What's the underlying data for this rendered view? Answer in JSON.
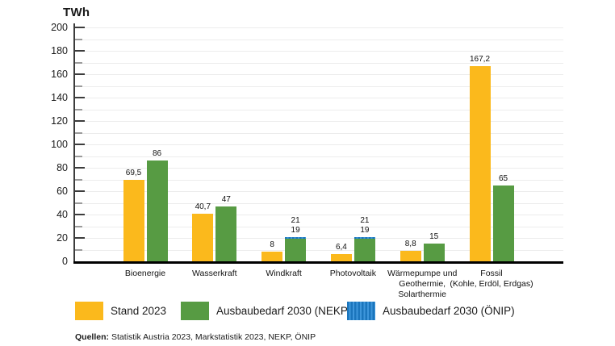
{
  "chart_data": {
    "type": "bar",
    "unit_label": "TWh",
    "categories": [
      [
        "Bioenergie"
      ],
      [
        "Wasserkraft"
      ],
      [
        "Windkraft"
      ],
      [
        "Photovoltaik"
      ],
      [
        "Wärmepumpe und",
        "Geothermie,",
        "Solarthermie"
      ],
      [
        "Fossil",
        "(Kohle, Erdöl, Erdgas)"
      ]
    ],
    "series": [
      {
        "name": "Stand 2023",
        "color": "#FBB91C",
        "pattern": "solid",
        "values": [
          69.5,
          40.7,
          8,
          6.4,
          8.8,
          167.2
        ],
        "labels": [
          "69,5",
          "40,7",
          "8",
          "6,4",
          "8,8",
          "167,2"
        ]
      },
      {
        "name": "Ausbaubedarf 2030 (NEKP)",
        "color": "#579B43",
        "pattern": "solid",
        "values": [
          86,
          47,
          19,
          19,
          15,
          65
        ],
        "labels": [
          "86",
          "47",
          "19",
          "19",
          "15",
          "65"
        ]
      },
      {
        "name": "Ausbaubedarf 2030 (ÖNIP)",
        "color": "#1B75BC",
        "color2": "#3E96DB",
        "pattern": "vertical-stripes",
        "values": [
          null,
          null,
          21,
          21,
          null,
          null
        ],
        "labels": [
          "",
          "",
          "21",
          "21",
          "",
          ""
        ]
      }
    ],
    "ylim": [
      0,
      200
    ],
    "ytick_step": 20,
    "minor_step": 10,
    "grid": true,
    "legend_position": "bottom"
  },
  "source": {
    "prefix": "Quellen:",
    "text": "Statistik Austria 2023, Markstatistik 2023, NEKP, ÖNIP"
  }
}
